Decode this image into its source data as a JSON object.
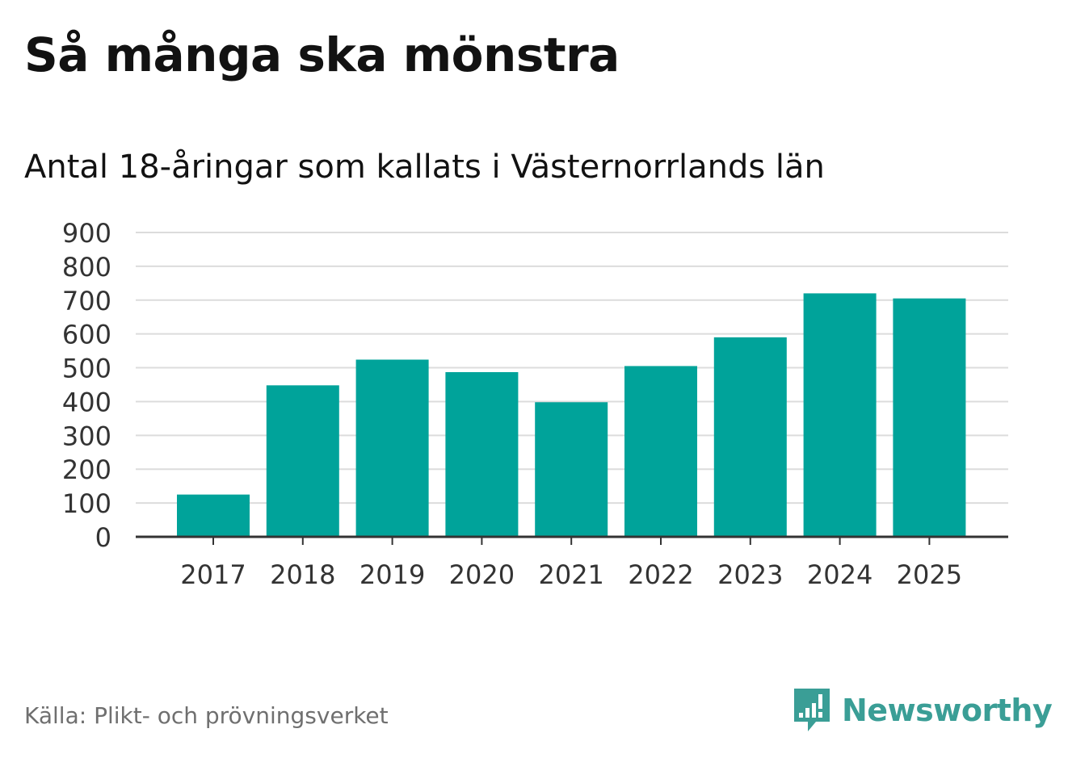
{
  "title": "Så många ska mönstra",
  "subtitle": "Antal 18-åringar som kallats i Västernorrlands län",
  "source": "Källa: Plikt- och prövningsverket",
  "logo_text": "Newsworthy",
  "colors": {
    "bar": "#00a39a",
    "grid": "#dcdcdc",
    "axis": "#333333",
    "logo": "#3a9e96"
  },
  "chart_data": {
    "type": "bar",
    "title": "Så många ska mönstra",
    "subtitle": "Antal 18-åringar som kallats i Västernorrlands län",
    "xlabel": "",
    "ylabel": "",
    "categories": [
      "2017",
      "2018",
      "2019",
      "2020",
      "2021",
      "2022",
      "2023",
      "2024",
      "2025"
    ],
    "values": [
      125,
      448,
      524,
      487,
      398,
      505,
      590,
      720,
      705
    ],
    "ylim": [
      0,
      900
    ],
    "yticks": [
      0,
      100,
      200,
      300,
      400,
      500,
      600,
      700,
      800,
      900
    ],
    "grid": true
  }
}
